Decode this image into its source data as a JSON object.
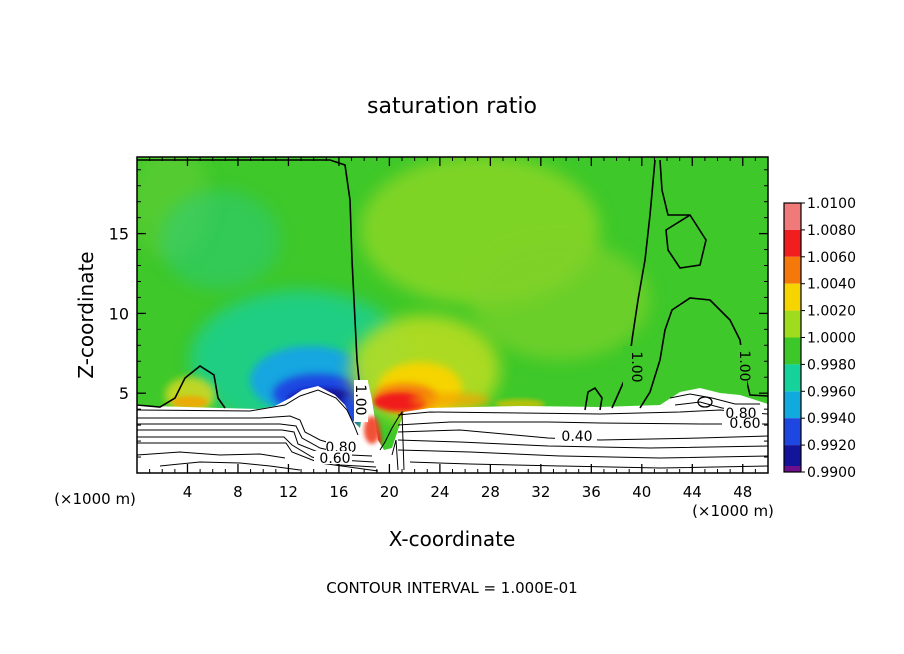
{
  "chart_data": {
    "type": "heatmap",
    "title": "saturation ratio",
    "xlabel": "X-coordinate",
    "ylabel": "Z-coordinate",
    "x_unit_left": "(×1000 m)",
    "x_unit_right": "(×1000 m)",
    "xlim": [
      0,
      50
    ],
    "ylim": [
      0,
      19.8
    ],
    "x_ticks": [
      4,
      8,
      12,
      16,
      20,
      24,
      28,
      32,
      36,
      40,
      44,
      48
    ],
    "y_ticks": [
      5,
      10,
      15
    ],
    "colorbar": {
      "levels": [
        "1.0100",
        "1.0080",
        "1.0060",
        "1.0040",
        "1.0020",
        "1.0000",
        "0.9980",
        "0.9960",
        "0.9940",
        "0.9920",
        "0.9900"
      ],
      "colors": [
        "#f07a7a",
        "#f01e1e",
        "#f5780a",
        "#f5d400",
        "#a0dc1e",
        "#3cc828",
        "#14d29a",
        "#10aadf",
        "#1e46e1",
        "#14149b",
        "#6e0f8c"
      ]
    },
    "contour_labels": [
      "1.00",
      "1.00",
      "1.00",
      "0.80",
      "0.60",
      "0.40",
      "0.80",
      "0.60"
    ],
    "footer": "CONTOUR INTERVAL = 1.000E-01"
  }
}
